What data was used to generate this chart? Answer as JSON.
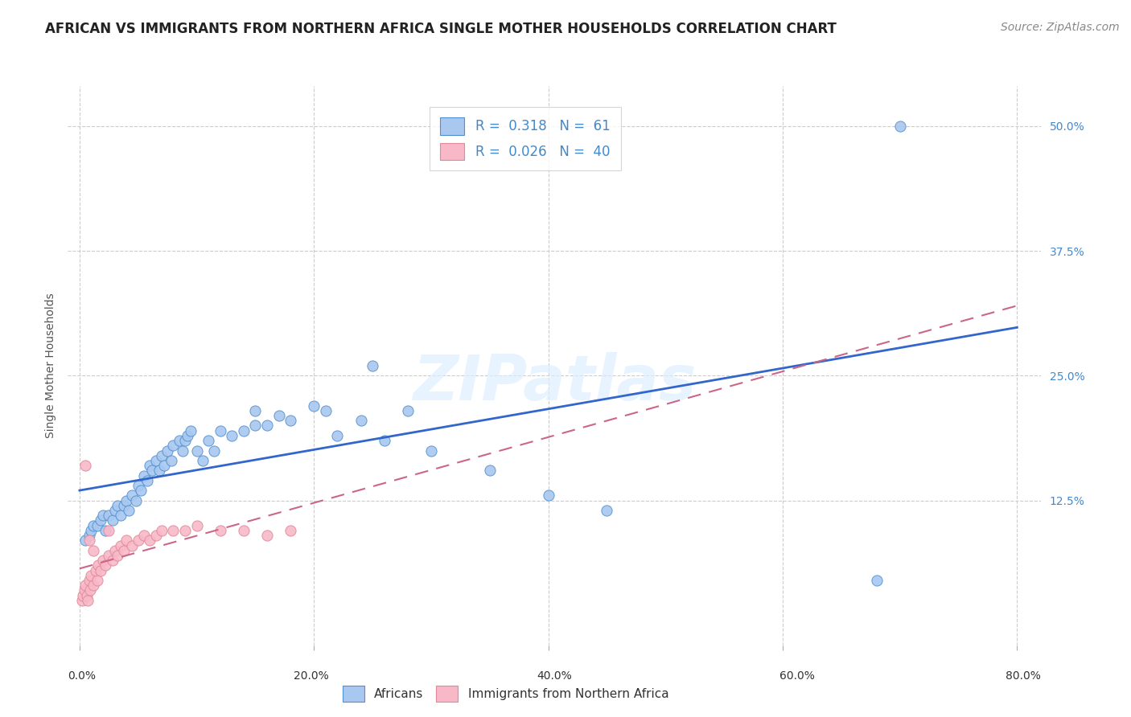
{
  "title": "AFRICAN VS IMMIGRANTS FROM NORTHERN AFRICA SINGLE MOTHER HOUSEHOLDS CORRELATION CHART",
  "source": "Source: ZipAtlas.com",
  "ylabel": "Single Mother Households",
  "x_tick_labels": [
    "0.0%",
    "20.0%",
    "40.0%",
    "60.0%",
    "80.0%"
  ],
  "x_tick_values": [
    0.0,
    0.2,
    0.4,
    0.6,
    0.8
  ],
  "y_tick_labels": [
    "12.5%",
    "25.0%",
    "37.5%",
    "50.0%"
  ],
  "y_tick_values": [
    0.125,
    0.25,
    0.375,
    0.5
  ],
  "xlim": [
    -0.01,
    0.82
  ],
  "ylim": [
    -0.02,
    0.54
  ],
  "legend_labels": [
    "Africans",
    "Immigrants from Northern Africa"
  ],
  "blue_R": 0.318,
  "blue_N": 61,
  "pink_R": 0.026,
  "pink_N": 40,
  "blue_fill": "#a8c8f0",
  "pink_fill": "#f8b8c8",
  "blue_edge": "#5090d0",
  "pink_edge": "#e08898",
  "blue_line": "#3366cc",
  "pink_line": "#cc6688",
  "grid_color": "#cccccc",
  "background_color": "#ffffff",
  "watermark": "ZIPatlas",
  "title_fontsize": 12,
  "source_fontsize": 10,
  "blue_scatter_x": [
    0.005,
    0.008,
    0.01,
    0.012,
    0.015,
    0.018,
    0.02,
    0.022,
    0.025,
    0.028,
    0.03,
    0.032,
    0.035,
    0.038,
    0.04,
    0.042,
    0.045,
    0.048,
    0.05,
    0.052,
    0.055,
    0.058,
    0.06,
    0.062,
    0.065,
    0.068,
    0.07,
    0.072,
    0.075,
    0.078,
    0.08,
    0.085,
    0.088,
    0.09,
    0.092,
    0.095,
    0.1,
    0.105,
    0.11,
    0.115,
    0.12,
    0.13,
    0.14,
    0.15,
    0.16,
    0.17,
    0.18,
    0.2,
    0.21,
    0.22,
    0.24,
    0.26,
    0.28,
    0.15,
    0.3,
    0.35,
    0.4,
    0.45,
    0.68,
    0.7,
    0.25
  ],
  "blue_scatter_y": [
    0.085,
    0.09,
    0.095,
    0.1,
    0.1,
    0.105,
    0.11,
    0.095,
    0.11,
    0.105,
    0.115,
    0.12,
    0.11,
    0.12,
    0.125,
    0.115,
    0.13,
    0.125,
    0.14,
    0.135,
    0.15,
    0.145,
    0.16,
    0.155,
    0.165,
    0.155,
    0.17,
    0.16,
    0.175,
    0.165,
    0.18,
    0.185,
    0.175,
    0.185,
    0.19,
    0.195,
    0.175,
    0.165,
    0.185,
    0.175,
    0.195,
    0.19,
    0.195,
    0.2,
    0.2,
    0.21,
    0.205,
    0.22,
    0.215,
    0.19,
    0.205,
    0.185,
    0.215,
    0.215,
    0.175,
    0.155,
    0.13,
    0.115,
    0.045,
    0.5,
    0.26
  ],
  "pink_scatter_x": [
    0.002,
    0.003,
    0.004,
    0.005,
    0.006,
    0.007,
    0.008,
    0.009,
    0.01,
    0.012,
    0.014,
    0.015,
    0.016,
    0.018,
    0.02,
    0.022,
    0.025,
    0.028,
    0.03,
    0.032,
    0.035,
    0.038,
    0.04,
    0.045,
    0.05,
    0.055,
    0.06,
    0.065,
    0.07,
    0.08,
    0.09,
    0.1,
    0.12,
    0.14,
    0.16,
    0.18,
    0.005,
    0.008,
    0.012,
    0.025
  ],
  "pink_scatter_y": [
    0.025,
    0.03,
    0.035,
    0.04,
    0.03,
    0.025,
    0.045,
    0.035,
    0.05,
    0.04,
    0.055,
    0.045,
    0.06,
    0.055,
    0.065,
    0.06,
    0.07,
    0.065,
    0.075,
    0.07,
    0.08,
    0.075,
    0.085,
    0.08,
    0.085,
    0.09,
    0.085,
    0.09,
    0.095,
    0.095,
    0.095,
    0.1,
    0.095,
    0.095,
    0.09,
    0.095,
    0.16,
    0.085,
    0.075,
    0.095
  ]
}
